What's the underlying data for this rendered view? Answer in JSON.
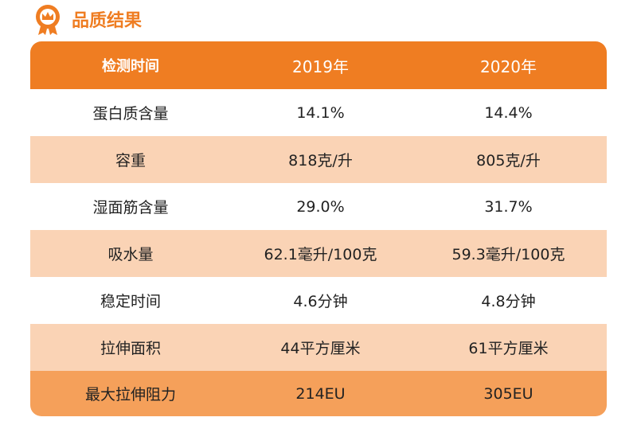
{
  "header": {
    "title": "品质结果"
  },
  "table": {
    "columns": [
      "检测时间",
      "2019年",
      "2020年"
    ],
    "rows": [
      [
        "蛋白质含量",
        "14.1%",
        "14.4%"
      ],
      [
        "容重",
        "818克/升",
        "805克/升"
      ],
      [
        "湿面筋含量",
        "29.0%",
        "31.7%"
      ],
      [
        "吸水量",
        "62.1毫升/100克",
        "59.3毫升/100克"
      ],
      [
        "稳定时间",
        "4.6分钟",
        "4.8分钟"
      ],
      [
        "拉伸面积",
        "44平方厘米",
        "61平方厘米"
      ],
      [
        "最大拉伸阻力",
        "214EU",
        "305EU"
      ]
    ]
  }
}
